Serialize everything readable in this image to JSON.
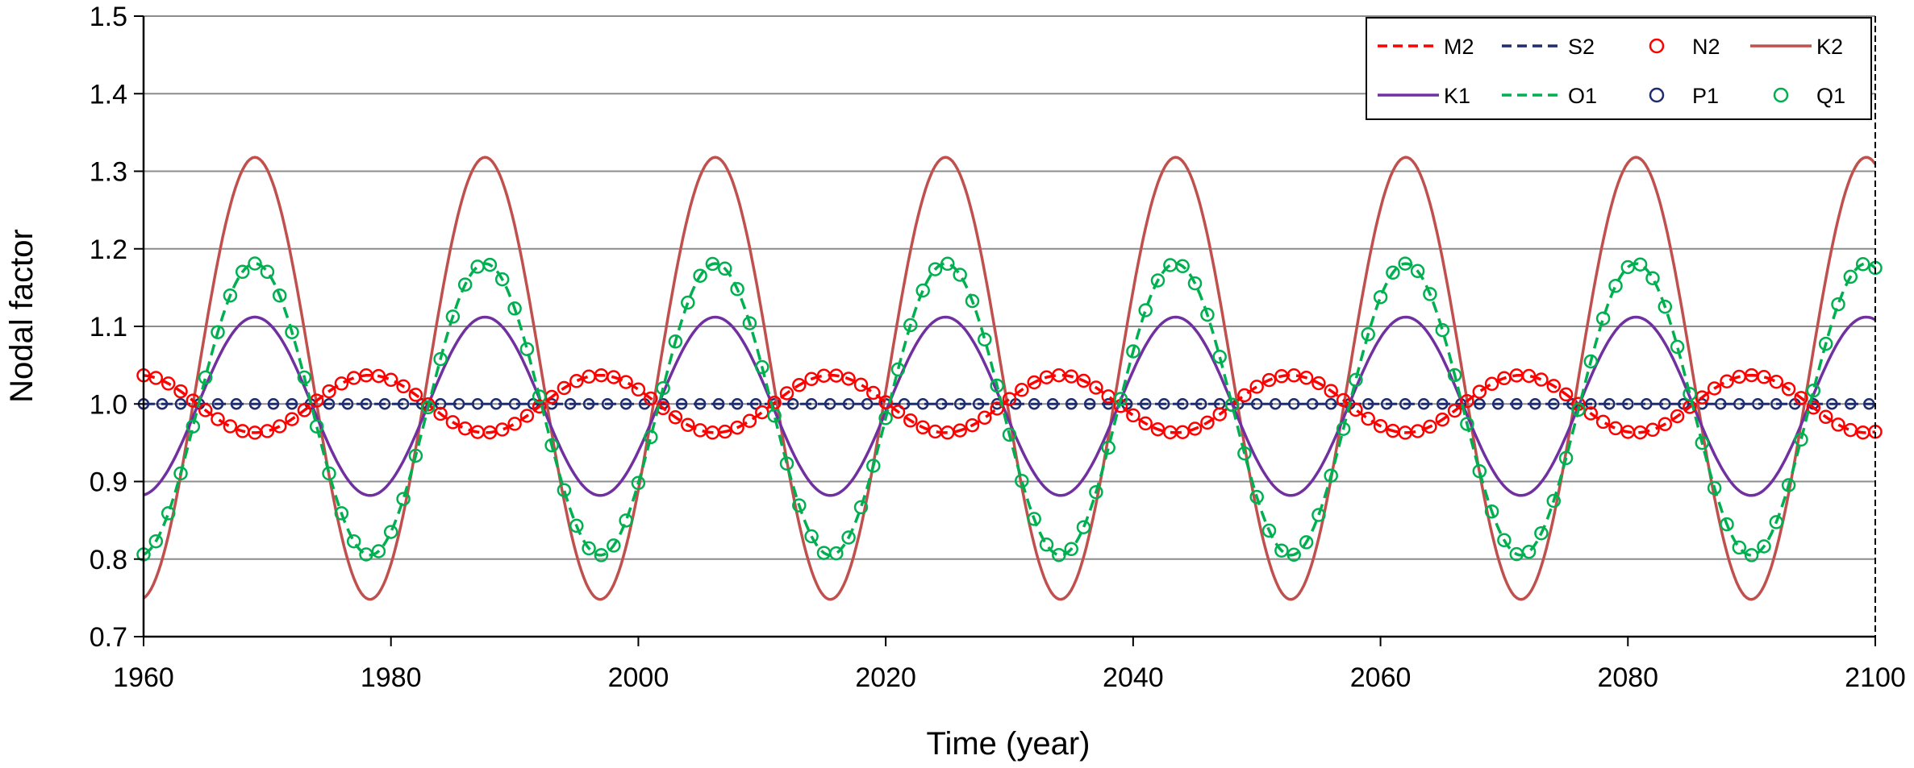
{
  "chart_data": {
    "type": "line",
    "title": "",
    "xlabel": "Time (year)",
    "ylabel": "Nodal factor",
    "xlim": [
      1960,
      2100
    ],
    "ylim": [
      0.7,
      1.5
    ],
    "xticks": [
      1960,
      1980,
      2000,
      2020,
      2040,
      2060,
      2080,
      2100
    ],
    "yticks": [
      0.7,
      0.8,
      0.9,
      1.0,
      1.1,
      1.2,
      1.3,
      1.4,
      1.5
    ],
    "ytick_labels": [
      "0.7",
      "0.8",
      "0.9",
      "1.0",
      "1.1",
      "1.2",
      "1.3",
      "1.4",
      "1.5"
    ],
    "grid": "horizontal",
    "legend_position": "top-right",
    "nodal_period_years": 18.61,
    "series": [
      {
        "name": "M2",
        "color": "#ff0000",
        "style": "dashed",
        "mean": 1.0,
        "amplitude": -0.037,
        "peak_year": 1969.0
      },
      {
        "name": "S2",
        "color": "#1f2d6e",
        "style": "dashed",
        "mean": 1.0,
        "amplitude": 0.0,
        "peak_year": 1969.0
      },
      {
        "name": "N2",
        "color": "#ff0000",
        "style": "markers",
        "mean": 1.0,
        "amplitude": -0.037,
        "peak_year": 1969.0
      },
      {
        "name": "K2",
        "color": "#c0504d",
        "style": "solid",
        "mean": 1.033,
        "amplitude": 0.285,
        "peak_year": 1969.0
      },
      {
        "name": "K1",
        "color": "#7030a0",
        "style": "solid",
        "mean": 0.997,
        "amplitude": 0.115,
        "peak_year": 1969.0
      },
      {
        "name": "O1",
        "color": "#00b050",
        "style": "dashed",
        "mean": 0.993,
        "amplitude": 0.188,
        "peak_year": 1969.0
      },
      {
        "name": "P1",
        "color": "#1f2d6e",
        "style": "markers",
        "mean": 1.0,
        "amplitude": 0.0,
        "peak_year": 1969.0
      },
      {
        "name": "Q1",
        "color": "#00b050",
        "style": "markers",
        "mean": 0.993,
        "amplitude": 0.188,
        "peak_year": 1969.0
      }
    ]
  }
}
